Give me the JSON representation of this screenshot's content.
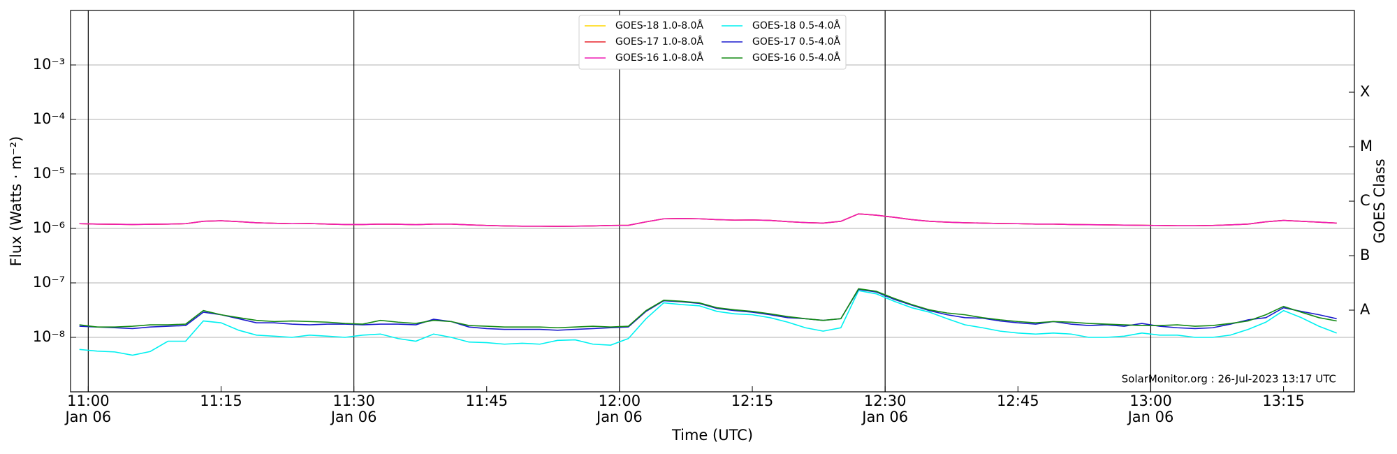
{
  "chart_data": {
    "type": "line",
    "xlabel": "Time (UTC)",
    "ylabel": "Flux (Watts · m⁻²)",
    "y2label": "GOES Class",
    "annotation": "SolarMonitor.org : 26-Jul-2023 13:17 UTC",
    "log_scale": true,
    "grid": true,
    "legend_position": "upper center",
    "xlim": [
      "10:58",
      "13:23"
    ],
    "xticks": [
      {
        "value": "11:00",
        "label": [
          "11:00",
          "Jan 06"
        ]
      },
      "11:15",
      {
        "value": "11:30",
        "label": [
          "11:30",
          "Jan 06"
        ]
      },
      "11:45",
      {
        "value": "12:00",
        "label": [
          "12:00",
          "Jan 06"
        ]
      },
      "12:15",
      {
        "value": "12:30",
        "label": [
          "12:30",
          "Jan 06"
        ]
      },
      "12:45",
      {
        "value": "13:00",
        "label": [
          "13:00",
          "Jan 06"
        ]
      },
      "13:15"
    ],
    "ylim": [
      1e-09,
      0.01
    ],
    "yticks": [
      {
        "value": 1e-08,
        "label": "10⁻⁸"
      },
      {
        "value": 1e-07,
        "label": "10⁻⁷"
      },
      {
        "value": 1e-06,
        "label": "10⁻⁶"
      },
      {
        "value": 1e-05,
        "label": "10⁻⁵"
      },
      {
        "value": 0.0001,
        "label": "10⁻⁴"
      },
      {
        "value": 0.001,
        "label": "10⁻³"
      }
    ],
    "y2lim": [
      1e-09,
      0.01
    ],
    "y2ticks": [
      {
        "value": 3.16e-08,
        "label": "A"
      },
      {
        "value": 3.16e-07,
        "label": "B"
      },
      {
        "value": 3.16e-06,
        "label": "C"
      },
      {
        "value": 3.16e-05,
        "label": "M"
      },
      {
        "value": 0.000316,
        "label": "X"
      }
    ],
    "x": [
      "10:59",
      "11:01",
      "11:03",
      "11:05",
      "11:07",
      "11:09",
      "11:11",
      "11:13",
      "11:15",
      "11:17",
      "11:19",
      "11:21",
      "11:23",
      "11:25",
      "11:27",
      "11:29",
      "11:31",
      "11:33",
      "11:35",
      "11:37",
      "11:39",
      "11:41",
      "11:43",
      "11:45",
      "11:47",
      "11:49",
      "11:51",
      "11:53",
      "11:55",
      "11:57",
      "11:59",
      "12:01",
      "12:03",
      "12:05",
      "12:07",
      "12:09",
      "12:11",
      "12:13",
      "12:15",
      "12:17",
      "12:19",
      "12:21",
      "12:23",
      "12:25",
      "12:27",
      "12:29",
      "12:31",
      "12:33",
      "12:35",
      "12:37",
      "12:39",
      "12:41",
      "12:43",
      "12:45",
      "12:47",
      "12:49",
      "12:51",
      "12:53",
      "12:55",
      "12:57",
      "12:59",
      "13:01",
      "13:03",
      "13:05",
      "13:07",
      "13:09",
      "13:11",
      "13:13",
      "13:15",
      "13:17",
      "13:19",
      "13:21"
    ],
    "series": [
      {
        "name": "GOES-18 1.0-8.0Å",
        "color": "#ffd700",
        "values": [
          1.22e-06,
          1.2e-06,
          1.19e-06,
          1.18e-06,
          1.19e-06,
          1.2e-06,
          1.22e-06,
          1.35e-06,
          1.38e-06,
          1.33e-06,
          1.27e-06,
          1.24e-06,
          1.22e-06,
          1.23e-06,
          1.2e-06,
          1.18e-06,
          1.18e-06,
          1.2e-06,
          1.19e-06,
          1.17e-06,
          1.2e-06,
          1.2e-06,
          1.16e-06,
          1.13e-06,
          1.11e-06,
          1.1e-06,
          1.1e-06,
          1.09e-06,
          1.1e-06,
          1.11e-06,
          1.13e-06,
          1.14e-06,
          1.32e-06,
          1.5e-06,
          1.52e-06,
          1.5e-06,
          1.45e-06,
          1.42e-06,
          1.43e-06,
          1.4e-06,
          1.33e-06,
          1.28e-06,
          1.25e-06,
          1.35e-06,
          1.85e-06,
          1.75e-06,
          1.6e-06,
          1.45e-06,
          1.35e-06,
          1.3e-06,
          1.27e-06,
          1.25e-06,
          1.23e-06,
          1.22e-06,
          1.2e-06,
          1.2e-06,
          1.18e-06,
          1.17e-06,
          1.16e-06,
          1.15e-06,
          1.14e-06,
          1.13e-06,
          1.12e-06,
          1.12e-06,
          1.13e-06,
          1.16e-06,
          1.2e-06,
          1.32e-06,
          1.4e-06,
          1.35e-06,
          1.3e-06,
          1.25e-06
        ]
      },
      {
        "name": "GOES-17 1.0-8.0Å",
        "color": "#e8232b",
        "values": [
          1.22e-06,
          1.2e-06,
          1.19e-06,
          1.18e-06,
          1.19e-06,
          1.2e-06,
          1.22e-06,
          1.35e-06,
          1.38e-06,
          1.33e-06,
          1.27e-06,
          1.24e-06,
          1.22e-06,
          1.23e-06,
          1.2e-06,
          1.18e-06,
          1.18e-06,
          1.2e-06,
          1.19e-06,
          1.17e-06,
          1.2e-06,
          1.2e-06,
          1.16e-06,
          1.13e-06,
          1.11e-06,
          1.1e-06,
          1.1e-06,
          1.09e-06,
          1.1e-06,
          1.11e-06,
          1.13e-06,
          1.14e-06,
          1.32e-06,
          1.5e-06,
          1.52e-06,
          1.5e-06,
          1.45e-06,
          1.42e-06,
          1.43e-06,
          1.4e-06,
          1.33e-06,
          1.28e-06,
          1.25e-06,
          1.35e-06,
          1.85e-06,
          1.75e-06,
          1.6e-06,
          1.45e-06,
          1.35e-06,
          1.3e-06,
          1.27e-06,
          1.25e-06,
          1.23e-06,
          1.22e-06,
          1.2e-06,
          1.2e-06,
          1.18e-06,
          1.17e-06,
          1.16e-06,
          1.15e-06,
          1.14e-06,
          1.13e-06,
          1.12e-06,
          1.12e-06,
          1.13e-06,
          1.16e-06,
          1.2e-06,
          1.32e-06,
          1.4e-06,
          1.35e-06,
          1.3e-06,
          1.25e-06
        ]
      },
      {
        "name": "GOES-16 1.0-8.0Å",
        "color": "#ee1bb4",
        "values": [
          1.22e-06,
          1.2e-06,
          1.19e-06,
          1.18e-06,
          1.19e-06,
          1.2e-06,
          1.22e-06,
          1.35e-06,
          1.38e-06,
          1.33e-06,
          1.27e-06,
          1.24e-06,
          1.22e-06,
          1.23e-06,
          1.2e-06,
          1.18e-06,
          1.18e-06,
          1.2e-06,
          1.19e-06,
          1.17e-06,
          1.2e-06,
          1.2e-06,
          1.16e-06,
          1.13e-06,
          1.11e-06,
          1.1e-06,
          1.1e-06,
          1.09e-06,
          1.1e-06,
          1.11e-06,
          1.13e-06,
          1.14e-06,
          1.32e-06,
          1.5e-06,
          1.52e-06,
          1.5e-06,
          1.45e-06,
          1.42e-06,
          1.43e-06,
          1.4e-06,
          1.33e-06,
          1.28e-06,
          1.25e-06,
          1.35e-06,
          1.85e-06,
          1.75e-06,
          1.6e-06,
          1.45e-06,
          1.35e-06,
          1.3e-06,
          1.27e-06,
          1.25e-06,
          1.23e-06,
          1.22e-06,
          1.2e-06,
          1.2e-06,
          1.18e-06,
          1.17e-06,
          1.16e-06,
          1.15e-06,
          1.14e-06,
          1.13e-06,
          1.12e-06,
          1.12e-06,
          1.13e-06,
          1.16e-06,
          1.2e-06,
          1.32e-06,
          1.4e-06,
          1.35e-06,
          1.3e-06,
          1.25e-06
        ]
      },
      {
        "name": "GOES-18 0.5-4.0Å",
        "color": "#00f0f0",
        "values": [
          6e-09,
          5.6e-09,
          5.4e-09,
          4.7e-09,
          5.5e-09,
          8.5e-09,
          8.5e-09,
          2e-08,
          1.85e-08,
          1.35e-08,
          1.1e-08,
          1.05e-08,
          1e-08,
          1.1e-08,
          1.05e-08,
          1e-08,
          1.1e-08,
          1.15e-08,
          9.5e-09,
          8.5e-09,
          1.15e-08,
          1e-08,
          8.2e-09,
          8e-09,
          7.5e-09,
          7.8e-09,
          7.5e-09,
          8.8e-09,
          9e-09,
          7.5e-09,
          7.2e-09,
          9.5e-09,
          2.2e-08,
          4.3e-08,
          4e-08,
          3.8e-08,
          3e-08,
          2.7e-08,
          2.6e-08,
          2.3e-08,
          1.9e-08,
          1.5e-08,
          1.3e-08,
          1.5e-08,
          7.2e-08,
          6.3e-08,
          4.6e-08,
          3.5e-08,
          2.9e-08,
          2.2e-08,
          1.7e-08,
          1.5e-08,
          1.3e-08,
          1.2e-08,
          1.15e-08,
          1.2e-08,
          1.15e-08,
          1e-08,
          1e-08,
          1.05e-08,
          1.2e-08,
          1.1e-08,
          1.1e-08,
          1e-08,
          1e-08,
          1.1e-08,
          1.4e-08,
          1.9e-08,
          3.1e-08,
          2.3e-08,
          1.6e-08,
          1.2e-08
        ]
      },
      {
        "name": "GOES-17 0.5-4.0Å",
        "color": "#1a1acd",
        "values": [
          1.6e-08,
          1.55e-08,
          1.5e-08,
          1.45e-08,
          1.55e-08,
          1.6e-08,
          1.65e-08,
          2.9e-08,
          2.6e-08,
          2.2e-08,
          1.85e-08,
          1.85e-08,
          1.75e-08,
          1.7e-08,
          1.75e-08,
          1.75e-08,
          1.7e-08,
          1.75e-08,
          1.75e-08,
          1.7e-08,
          2.15e-08,
          1.95e-08,
          1.55e-08,
          1.45e-08,
          1.4e-08,
          1.4e-08,
          1.4e-08,
          1.35e-08,
          1.4e-08,
          1.45e-08,
          1.5e-08,
          1.55e-08,
          3e-08,
          4.7e-08,
          4.5e-08,
          4.2e-08,
          3.4e-08,
          3.1e-08,
          2.9e-08,
          2.6e-08,
          2.3e-08,
          2.2e-08,
          2.05e-08,
          2.2e-08,
          7.6e-08,
          6.8e-08,
          5e-08,
          3.9e-08,
          3.1e-08,
          2.6e-08,
          2.3e-08,
          2.25e-08,
          2e-08,
          1.85e-08,
          1.75e-08,
          1.95e-08,
          1.75e-08,
          1.65e-08,
          1.7e-08,
          1.6e-08,
          1.8e-08,
          1.6e-08,
          1.5e-08,
          1.45e-08,
          1.5e-08,
          1.75e-08,
          2.1e-08,
          2.3e-08,
          3.5e-08,
          3e-08,
          2.6e-08,
          2.2e-08
        ]
      },
      {
        "name": "GOES-16 0.5-4.0Å",
        "color": "#138a13",
        "values": [
          1.7e-08,
          1.55e-08,
          1.55e-08,
          1.6e-08,
          1.7e-08,
          1.7e-08,
          1.75e-08,
          3.1e-08,
          2.6e-08,
          2.3e-08,
          2.05e-08,
          1.95e-08,
          2e-08,
          1.95e-08,
          1.9e-08,
          1.8e-08,
          1.75e-08,
          2.05e-08,
          1.9e-08,
          1.8e-08,
          2.05e-08,
          1.95e-08,
          1.65e-08,
          1.6e-08,
          1.55e-08,
          1.55e-08,
          1.55e-08,
          1.5e-08,
          1.55e-08,
          1.6e-08,
          1.55e-08,
          1.6e-08,
          3.1e-08,
          4.8e-08,
          4.6e-08,
          4.3e-08,
          3.5e-08,
          3.2e-08,
          3e-08,
          2.7e-08,
          2.4e-08,
          2.2e-08,
          2.05e-08,
          2.2e-08,
          7.8e-08,
          7e-08,
          5.2e-08,
          4e-08,
          3.2e-08,
          2.8e-08,
          2.6e-08,
          2.3e-08,
          2.1e-08,
          1.95e-08,
          1.85e-08,
          1.95e-08,
          1.9e-08,
          1.8e-08,
          1.75e-08,
          1.7e-08,
          1.65e-08,
          1.65e-08,
          1.7e-08,
          1.6e-08,
          1.65e-08,
          1.8e-08,
          2e-08,
          2.6e-08,
          3.7e-08,
          2.9e-08,
          2.3e-08,
          2e-08
        ]
      }
    ]
  }
}
